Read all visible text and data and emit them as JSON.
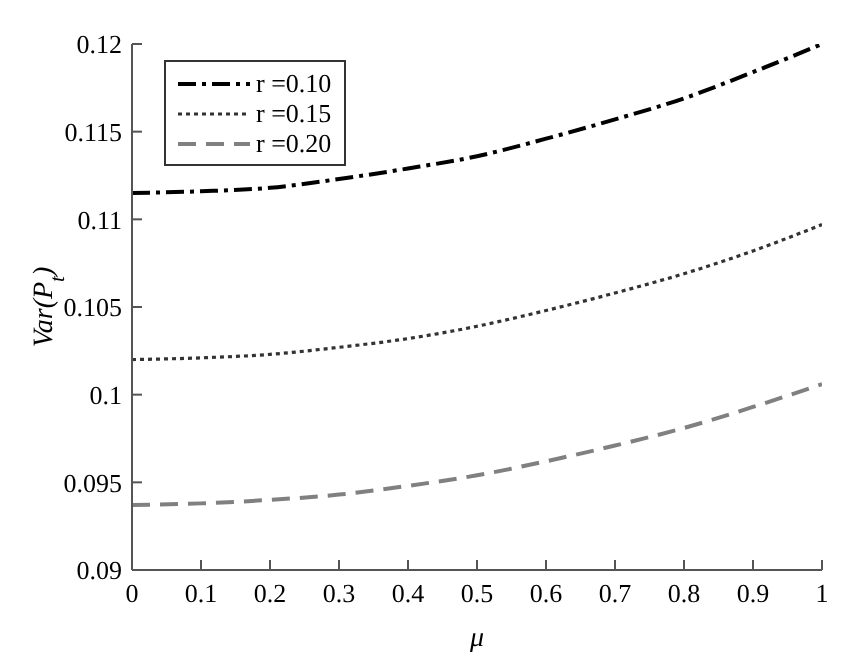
{
  "chart_data": {
    "type": "line",
    "xlabel": "μ",
    "ylabel": "Var(P$_{t}$)",
    "x": [
      0,
      0.1,
      0.2,
      0.3,
      0.4,
      0.5,
      0.6,
      0.7,
      0.8,
      0.9,
      1
    ],
    "series": [
      {
        "name": "r =0.10",
        "color": "#000000",
        "line_style": "dashdot",
        "values": [
          0.1115,
          0.1116,
          0.1118,
          0.1123,
          0.1129,
          0.1136,
          0.1146,
          0.1157,
          0.1169,
          0.1184,
          0.12
        ]
      },
      {
        "name": "r =0.15",
        "color": "#333333",
        "line_style": "dotted",
        "values": [
          0.102,
          0.1021,
          0.1023,
          0.1027,
          0.1032,
          0.1039,
          0.1048,
          0.1058,
          0.1069,
          0.1082,
          0.1097
        ]
      },
      {
        "name": "r =0.20",
        "color": "#808080",
        "line_style": "dashed",
        "values": [
          0.0937,
          0.0938,
          0.094,
          0.0943,
          0.0948,
          0.0954,
          0.0962,
          0.0971,
          0.0981,
          0.0993,
          0.1006
        ]
      }
    ],
    "xlim": [
      0,
      1
    ],
    "xticks": [
      0,
      0.1,
      0.2,
      0.3,
      0.4,
      0.5,
      0.6,
      0.7,
      0.8,
      0.9,
      1
    ],
    "ylim": [
      0.09,
      0.12
    ],
    "yticks": [
      0.09,
      0.095,
      0.1,
      0.105,
      0.11,
      0.115,
      0.12
    ],
    "grid": false,
    "legend": "top left",
    "marker": "none"
  }
}
